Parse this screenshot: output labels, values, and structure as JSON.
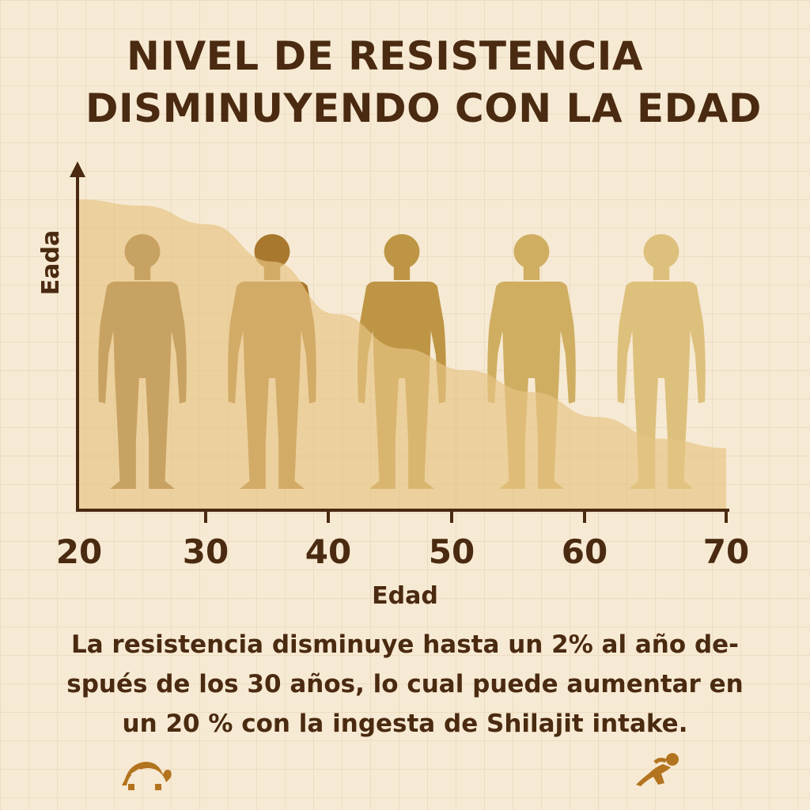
{
  "title_lines": [
    "NIVEL DE RESISTENCIA",
    "DISMINUYENDO CON LA EDAD"
  ],
  "caption_lines": [
    "La resistencia disminuye hasta un 2% al año de-",
    "spués de los 30 años, lo cual puede aumentar en",
    "un 20 % con la ingesta de Shilajit intake."
  ],
  "colors": {
    "text": "#4a2a10",
    "area": "#e6c483",
    "figures": [
      "#8a5a1c",
      "#a8782e",
      "#bd9544",
      "#cfae62",
      "#ddc07c"
    ]
  },
  "chart_data": {
    "type": "area",
    "xlabel": "Edad",
    "ylabel": "Eada",
    "xlim": [
      20,
      70
    ],
    "x_ticks": [
      20,
      30,
      40,
      50,
      60,
      70
    ],
    "ylim": [
      0,
      100
    ],
    "grid": true,
    "series": [
      {
        "x": [
          20,
          25,
          30,
          35,
          40,
          45,
          50,
          55,
          60,
          65,
          70
        ],
        "values": [
          100,
          98,
          92,
          80,
          63,
          52,
          45,
          38,
          30,
          23,
          20
        ]
      }
    ],
    "figures_at": [
      25,
      35,
      45,
      55,
      65
    ]
  }
}
